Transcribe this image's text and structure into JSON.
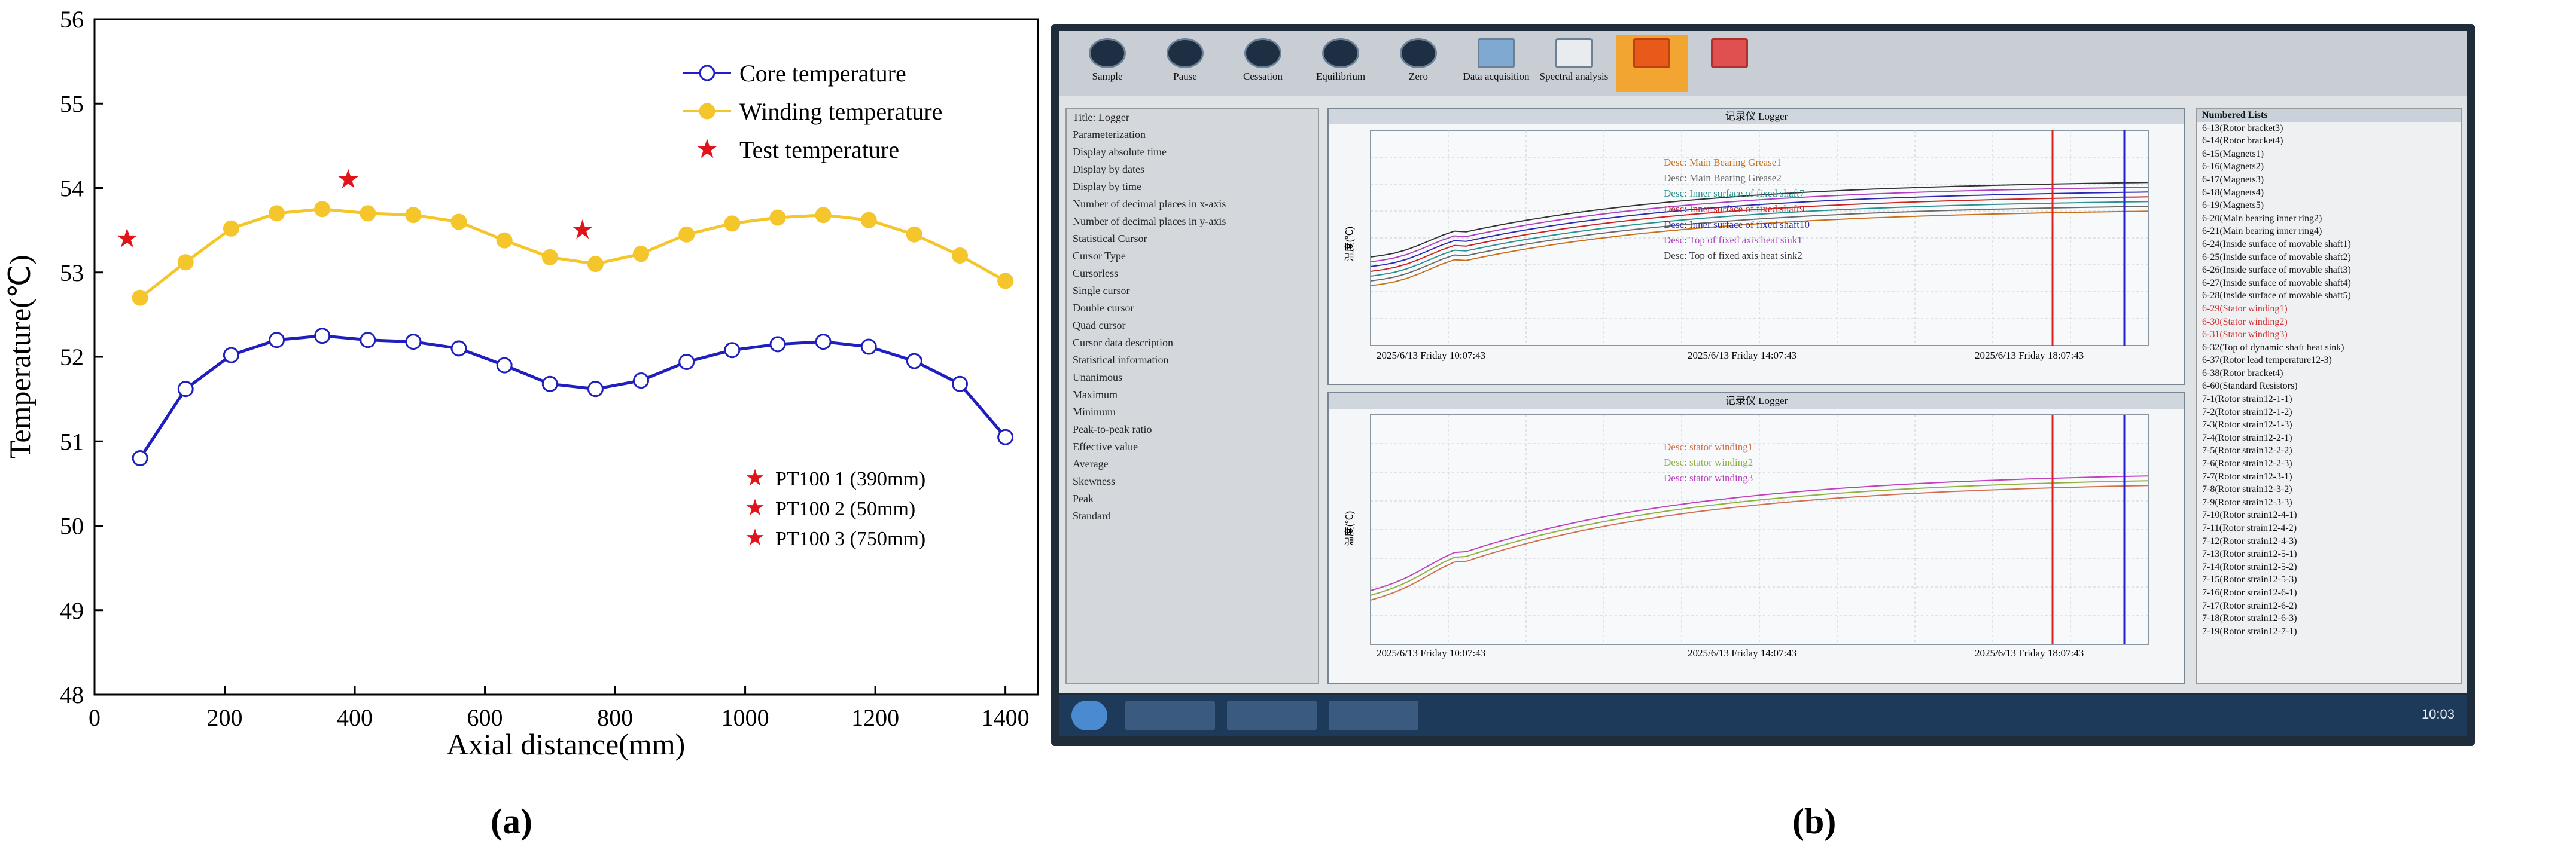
{
  "chart_data": {
    "type": "line",
    "xlabel": "Axial distance(mm)",
    "ylabel": "Temperature(℃)",
    "xlim": [
      0,
      1450
    ],
    "ylim": [
      48,
      56
    ],
    "xticks": [
      0,
      200,
      400,
      600,
      800,
      1000,
      1200,
      1400
    ],
    "yticks": [
      48,
      49,
      50,
      51,
      52,
      53,
      54,
      55,
      56
    ],
    "grid": false,
    "legend_position": "top-right",
    "series": [
      {
        "name": "Core temperature",
        "color": "#1f1fbf",
        "marker_fill": "#ffffff",
        "x": [
          70,
          140,
          210,
          280,
          350,
          420,
          490,
          560,
          630,
          700,
          770,
          840,
          910,
          980,
          1050,
          1120,
          1190,
          1260,
          1330,
          1400
        ],
        "y": [
          50.8,
          51.62,
          52.02,
          52.2,
          52.25,
          52.2,
          52.18,
          52.1,
          51.9,
          51.68,
          51.62,
          51.72,
          51.94,
          52.08,
          52.15,
          52.18,
          52.12,
          51.95,
          51.68,
          51.05
        ]
      },
      {
        "name": "Winding temperature",
        "color": "#f5c62c",
        "marker_fill": "#f5c62c",
        "x": [
          70,
          140,
          210,
          280,
          350,
          420,
          490,
          560,
          630,
          700,
          770,
          840,
          910,
          980,
          1050,
          1120,
          1190,
          1260,
          1330,
          1400
        ],
        "y": [
          52.7,
          53.12,
          53.52,
          53.7,
          53.75,
          53.7,
          53.68,
          53.6,
          53.38,
          53.18,
          53.1,
          53.22,
          53.45,
          53.58,
          53.65,
          53.68,
          53.62,
          53.45,
          53.2,
          52.9
        ]
      },
      {
        "name": "Test temperature",
        "color": "#e0141b",
        "marker": "star",
        "x": [
          50,
          390,
          750
        ],
        "y": [
          53.4,
          54.1,
          53.5
        ]
      }
    ],
    "annotations": [
      "PT100 1 (390mm)",
      "PT100 2 (50mm)",
      "PT100 3 (750mm)"
    ],
    "panel_label": "(a)"
  },
  "panel_b": {
    "panel_label": "(b)",
    "toolbar": [
      "Sample",
      "Pause",
      "Cessation",
      "Equilibrium",
      "Zero",
      "Data acquisition",
      "Spectral analysis"
    ],
    "upper_graph": {
      "title": "记录仪 Logger",
      "ylabel": "温度(℃)",
      "legend": [
        {
          "label": "Desc: Main Bearing Grease1",
          "color": "#c8701a"
        },
        {
          "label": "Desc: Main Bearing Grease2",
          "color": "#6a6a6a"
        },
        {
          "label": "Desc: Inner surface of fixed shaft7",
          "color": "#2a9090"
        },
        {
          "label": "Desc: Inner surface of fixed shaft9",
          "color": "#cc2222"
        },
        {
          "label": "Desc: Inner surface of fixed shaft10",
          "color": "#2a2ab0"
        },
        {
          "label": "Desc: Top of fixed axis heat sink1",
          "color": "#b040c0"
        },
        {
          "label": "Desc: Top of fixed axis heat sink2",
          "color": "#333333"
        }
      ],
      "time_labels": [
        "2025/6/13 Friday 10:07:43",
        "2025/6/13 Friday 14:07:43",
        "2025/6/13 Friday 18:07:43"
      ]
    },
    "lower_graph": {
      "title": "记录仪 Logger",
      "ylabel": "温度(℃)",
      "legend": [
        {
          "label": "Desc: stator winding1",
          "color": "#d07050"
        },
        {
          "label": "Desc: stator winding2",
          "color": "#90b040"
        },
        {
          "label": "Desc: stator winding3",
          "color": "#c040c0"
        }
      ],
      "time_labels": [
        "2025/6/13 Friday 10:07:43",
        "2025/6/13 Friday 14:07:43",
        "2025/6/13 Friday 18:07:43"
      ]
    },
    "left_panel": [
      "Title: Logger",
      "Parameterization",
      "Display absolute time",
      "Display by dates",
      "Display by time",
      "Number of decimal places in x-axis",
      "Number of decimal places in y-axis",
      "Statistical Cursor",
      "Cursor Type",
      "Cursorless",
      "Single cursor",
      "Double cursor",
      "Quad cursor",
      "Cursor data description",
      "Statistical information",
      "Unanimous",
      "Maximum",
      "Minimum",
      "Peak-to-peak ratio",
      "Effective value",
      "Average",
      "Skewness",
      "Peak",
      "Standard"
    ],
    "right_panel_title": "Numbered Lists",
    "right_panel": [
      "6-13(Rotor bracket3)",
      "6-14(Rotor bracket4)",
      "6-15(Magnets1)",
      "6-16(Magnets2)",
      "6-17(Magnets3)",
      "6-18(Magnets4)",
      "6-19(Magnets5)",
      "6-20(Main bearing inner ring2)",
      "6-21(Main bearing inner ring4)",
      "6-24(Inside surface of movable shaft1)",
      "6-25(Inside surface of movable shaft2)",
      "6-26(Inside surface of movable shaft3)",
      "6-27(Inside surface of movable shaft4)",
      "6-28(Inside surface of movable shaft5)",
      "6-29(Stator winding1)",
      "6-30(Stator winding2)",
      "6-31(Stator winding3)",
      "6-32(Top of dynamic shaft heat sink)",
      "6-37(Rotor lead temperature12-3)",
      "6-38(Rotor bracket4)",
      "6-60(Standard Resistors)",
      "7-1(Rotor strain12-1-1)",
      "7-2(Rotor strain12-1-2)",
      "7-3(Rotor strain12-1-3)",
      "7-4(Rotor strain12-2-1)",
      "7-5(Rotor strain12-2-2)",
      "7-6(Rotor strain12-2-3)",
      "7-7(Rotor strain12-3-1)",
      "7-8(Rotor strain12-3-2)",
      "7-9(Rotor strain12-3-3)",
      "7-10(Rotor strain12-4-1)",
      "7-11(Rotor strain12-4-2)",
      "7-12(Rotor strain12-4-3)",
      "7-13(Rotor strain12-5-1)",
      "7-14(Rotor strain12-5-2)",
      "7-15(Rotor strain12-5-3)",
      "7-16(Rotor strain12-6-1)",
      "7-17(Rotor strain12-6-2)",
      "7-18(Rotor strain12-6-3)",
      "7-19(Rotor strain12-7-1)"
    ],
    "clock": "10:03"
  }
}
